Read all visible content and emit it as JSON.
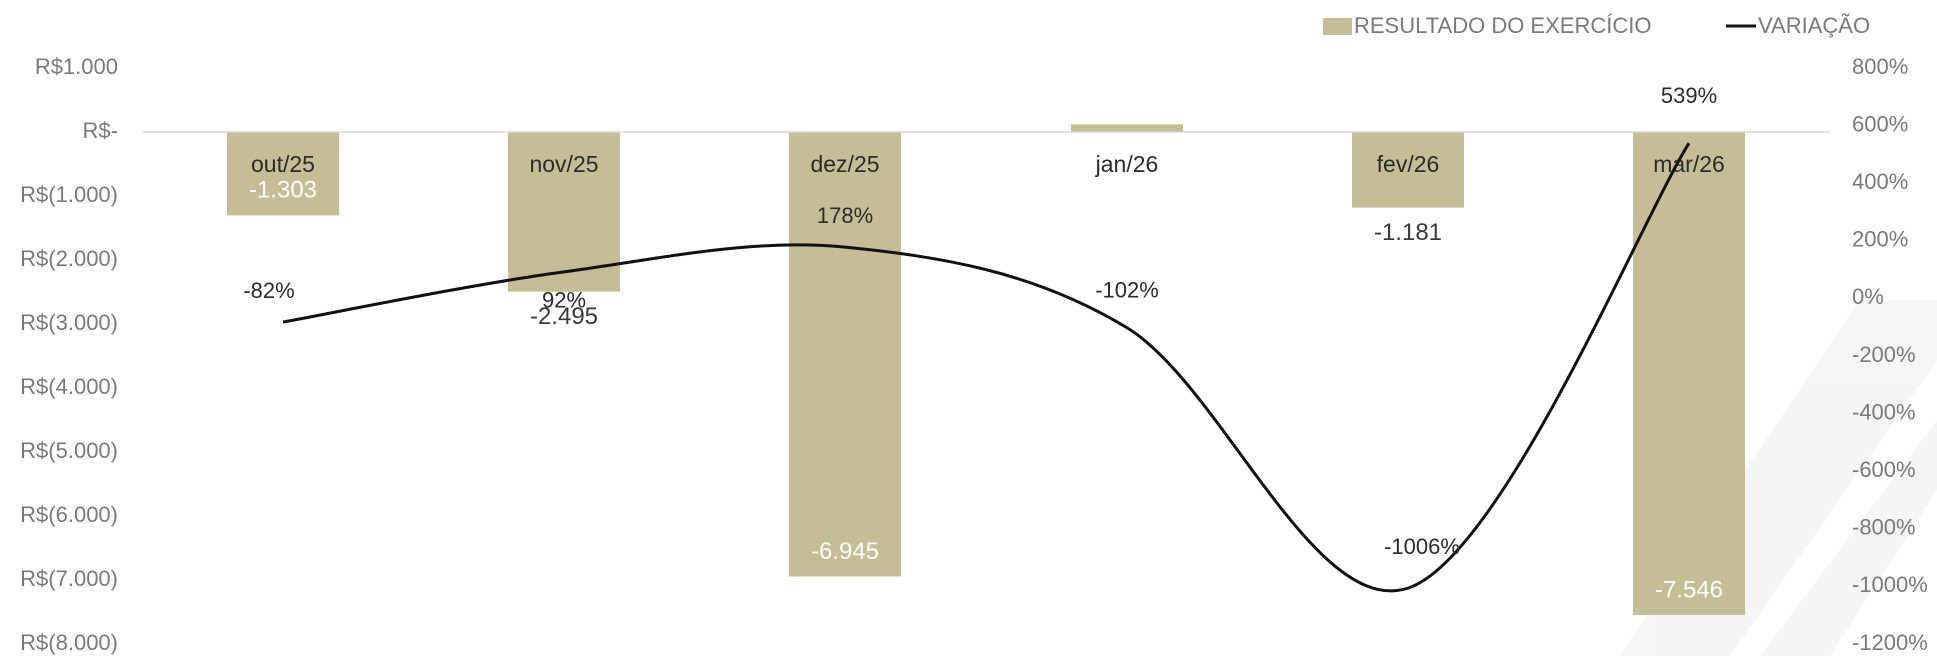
{
  "chart_data": {
    "type": "bar",
    "categories": [
      "out/25",
      "nov/25",
      "dez/25",
      "jan/26",
      "fev/26",
      "mar/26"
    ],
    "series": [
      {
        "name": "RESULTADO DO EXERCÍCIO",
        "type": "bar",
        "axis": "left",
        "values": [
          -1303,
          -2495,
          -6945,
          120,
          -1181,
          -7546
        ],
        "labels": [
          "-1.303",
          "-2.495",
          "-6.945",
          "",
          "-1.181",
          "-7.546"
        ],
        "color": "#c5bd96"
      },
      {
        "name": "VARIAÇÃO",
        "type": "line",
        "axis": "right",
        "smooth": true,
        "values": [
          -82,
          92,
          178,
          -102,
          -1006,
          539
        ],
        "labels": [
          "-82%",
          "92%",
          "178%",
          "-102%",
          "-1006%",
          "539%"
        ],
        "color": "#111111"
      }
    ],
    "y_left": {
      "range": [
        -8000,
        1000
      ],
      "tick_values": [
        1000,
        0,
        -1000,
        -2000,
        -3000,
        -4000,
        -5000,
        -6000,
        -7000,
        -8000
      ],
      "tick_labels": [
        "R$1.000",
        "R$-",
        "R$(1.000)",
        "R$(2.000)",
        "R$(3.000)",
        "R$(4.000)",
        "R$(5.000)",
        "R$(6.000)",
        "R$(7.000)",
        "R$(8.000)"
      ]
    },
    "y_right": {
      "range": [
        -1200,
        800
      ],
      "tick_values": [
        800,
        600,
        400,
        200,
        0,
        -200,
        -400,
        -600,
        -800,
        -1000,
        -1200
      ],
      "tick_labels": [
        "800%",
        "600%",
        "400%",
        "200%",
        "0%",
        "-200%",
        "-400%",
        "-600%",
        "-800%",
        "-1000%",
        "-1200%"
      ]
    },
    "legend_position": "top-right",
    "grid": false
  }
}
